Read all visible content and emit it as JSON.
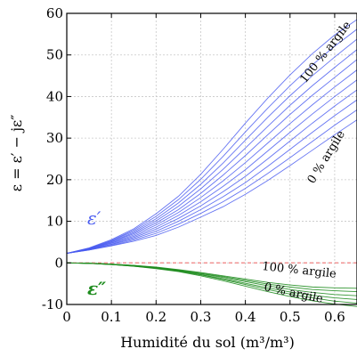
{
  "chart_data": {
    "type": "line",
    "title": "",
    "xlabel": "Humidité du sol (m³/m³)",
    "ylabel": "ε = ε′ − jε″",
    "xlim": [
      0,
      0.65
    ],
    "ylim": [
      -10,
      60
    ],
    "x_ticks": [
      "0",
      "0.1",
      "0.2",
      "0.3",
      "0.4",
      "0.5",
      "0.6"
    ],
    "y_ticks": [
      "60",
      "50",
      "40",
      "30",
      "20",
      "10",
      "0",
      "-10"
    ],
    "grid": true,
    "colors": {
      "real": "#4a5cf0",
      "imag": "#1e8c1e",
      "zero_line": "#f08080",
      "grid": "#c8c8c8"
    },
    "x": [
      0,
      0.05,
      0.1,
      0.15,
      0.2,
      0.25,
      0.3,
      0.35,
      0.4,
      0.45,
      0.5,
      0.55,
      0.6,
      0.65
    ],
    "series_real": [
      {
        "clay": 100,
        "values": [
          2.3,
          3.6,
          5.6,
          8.2,
          11.8,
          16.0,
          21.3,
          27.3,
          33.6,
          39.6,
          45.2,
          50.3,
          54.8,
          58.5
        ]
      },
      {
        "clay": 90,
        "values": [
          2.3,
          3.5,
          5.4,
          7.9,
          11.2,
          15.2,
          20.1,
          25.6,
          31.5,
          37.2,
          42.6,
          47.6,
          52.1,
          56.2
        ]
      },
      {
        "clay": 80,
        "values": [
          2.3,
          3.5,
          5.3,
          7.6,
          10.6,
          14.4,
          18.9,
          24.0,
          29.5,
          35.0,
          40.2,
          45.0,
          49.5,
          53.8
        ]
      },
      {
        "clay": 70,
        "values": [
          2.3,
          3.4,
          5.1,
          7.3,
          10.1,
          13.6,
          17.8,
          22.5,
          27.6,
          32.8,
          37.9,
          42.6,
          47.0,
          51.3
        ]
      },
      {
        "clay": 60,
        "values": [
          2.3,
          3.4,
          5.0,
          7.0,
          9.6,
          12.8,
          16.7,
          21.1,
          25.8,
          30.8,
          35.7,
          40.3,
          44.6,
          48.9
        ]
      },
      {
        "clay": 50,
        "values": [
          2.3,
          3.3,
          4.8,
          6.7,
          9.1,
          12.1,
          15.7,
          19.7,
          24.1,
          28.8,
          33.5,
          38.0,
          42.3,
          46.4
        ]
      },
      {
        "clay": 40,
        "values": [
          2.3,
          3.3,
          4.7,
          6.4,
          8.6,
          11.4,
          14.7,
          18.4,
          22.4,
          26.9,
          31.4,
          35.8,
          40.0,
          44.0
        ]
      },
      {
        "clay": 30,
        "values": [
          2.3,
          3.2,
          4.5,
          6.1,
          8.1,
          10.7,
          13.7,
          17.1,
          20.8,
          25.0,
          29.3,
          33.6,
          37.7,
          41.6
        ]
      },
      {
        "clay": 20,
        "values": [
          2.3,
          3.2,
          4.4,
          5.8,
          7.6,
          10.0,
          12.8,
          15.9,
          19.3,
          23.2,
          27.3,
          31.4,
          35.4,
          39.2
        ]
      },
      {
        "clay": 10,
        "values": [
          2.3,
          3.1,
          4.2,
          5.5,
          7.1,
          9.3,
          11.9,
          14.7,
          17.9,
          21.5,
          25.3,
          29.2,
          33.1,
          36.8
        ]
      },
      {
        "clay": 0,
        "values": [
          2.3,
          3.1,
          4.1,
          5.2,
          6.6,
          8.6,
          11.0,
          13.5,
          16.5,
          19.8,
          23.4,
          27.1,
          30.8,
          34.4
        ]
      }
    ],
    "series_imag": [
      {
        "clay": 100,
        "values": [
          0,
          -0.1,
          -0.3,
          -0.6,
          -1.0,
          -1.6,
          -2.3,
          -3.1,
          -3.9,
          -4.7,
          -5.3,
          -5.8,
          -6.0,
          -6.1
        ]
      },
      {
        "clay": 80,
        "values": [
          0,
          -0.1,
          -0.3,
          -0.6,
          -1.1,
          -1.7,
          -2.5,
          -3.3,
          -4.2,
          -5.1,
          -5.8,
          -6.4,
          -6.7,
          -6.9
        ]
      },
      {
        "clay": 60,
        "values": [
          0,
          -0.1,
          -0.3,
          -0.7,
          -1.2,
          -1.8,
          -2.6,
          -3.5,
          -4.5,
          -5.5,
          -6.4,
          -7.1,
          -7.6,
          -7.9
        ]
      },
      {
        "clay": 40,
        "values": [
          0,
          -0.1,
          -0.4,
          -0.7,
          -1.2,
          -1.9,
          -2.8,
          -3.8,
          -4.9,
          -6.0,
          -7.0,
          -7.8,
          -8.4,
          -8.8
        ]
      },
      {
        "clay": 20,
        "values": [
          0,
          -0.1,
          -0.4,
          -0.8,
          -1.3,
          -2.0,
          -2.9,
          -4.0,
          -5.2,
          -6.4,
          -7.5,
          -8.4,
          -9.2,
          -9.7
        ]
      },
      {
        "clay": 0,
        "values": [
          0,
          -0.1,
          -0.4,
          -0.8,
          -1.4,
          -2.1,
          -3.1,
          -4.3,
          -5.6,
          -6.9,
          -8.1,
          -9.1,
          -9.9,
          -10.5
        ]
      }
    ],
    "annotations": {
      "real_top": "100 % argile",
      "real_bottom": "0 % argile",
      "imag_top": "100 % argile",
      "imag_bottom": "0 % argile",
      "real_symbol": "ε′",
      "imag_symbol": "ε″"
    }
  }
}
